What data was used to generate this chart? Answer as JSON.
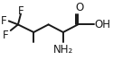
{
  "bg_color": "#ffffff",
  "line_color": "#1a1a1a",
  "lw": 1.4,
  "figsize": [
    1.25,
    0.67
  ],
  "dpi": 100,
  "xlim": [
    -0.05,
    1.1
  ],
  "ylim": [
    0.05,
    1.0
  ],
  "fs": 8.5
}
